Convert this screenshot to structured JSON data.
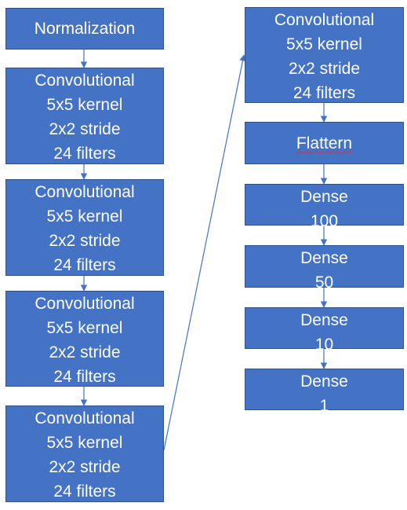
{
  "colors": {
    "box_fill": "#4472c4",
    "box_border": "#2f528f",
    "text": "#ffffff",
    "connector": "#4472c4",
    "spellcheck": "#e0303a"
  },
  "left_column": [
    {
      "lines": [
        "Normalization"
      ]
    },
    {
      "lines": [
        "Convolutional",
        "5x5 kernel",
        "2x2 stride",
        "24 filters"
      ]
    },
    {
      "lines": [
        "Convolutional",
        "5x5 kernel",
        "2x2 stride",
        "24 filters"
      ]
    },
    {
      "lines": [
        "Convolutional",
        "5x5 kernel",
        "2x2 stride",
        "24 filters"
      ]
    },
    {
      "lines": [
        "Convolutional",
        "5x5 kernel",
        "2x2 stride",
        "24 filters"
      ]
    }
  ],
  "right_column": [
    {
      "lines": [
        "Convolutional",
        "5x5 kernel",
        "2x2 stride",
        "24 filters"
      ]
    },
    {
      "lines": [
        "Flattern"
      ]
    },
    {
      "lines": [
        "Dense",
        "100"
      ]
    },
    {
      "lines": [
        "Dense",
        "50"
      ]
    },
    {
      "lines": [
        "Dense",
        "10"
      ]
    },
    {
      "lines": [
        "Dense",
        "1"
      ]
    }
  ]
}
